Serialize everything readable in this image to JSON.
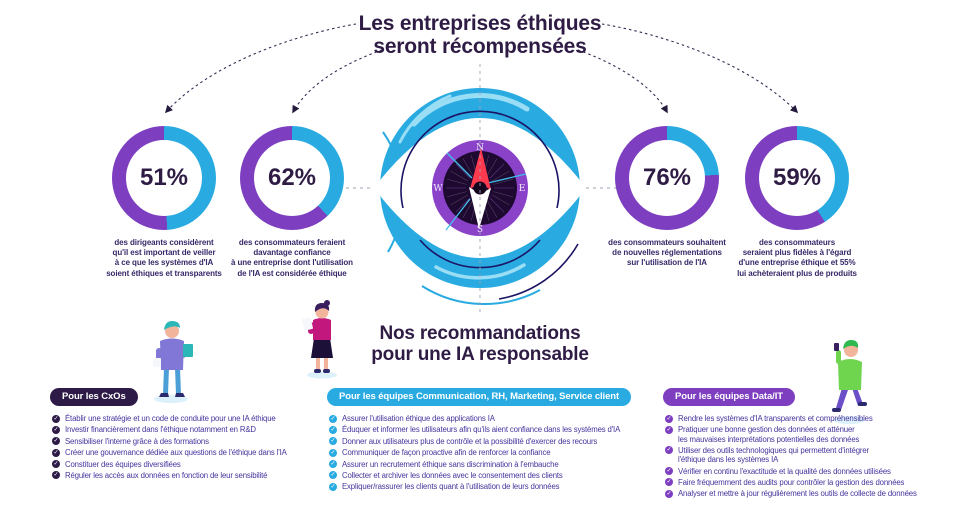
{
  "header": {
    "title_line1": "Les entreprises éthiques",
    "title_line2": "seront récompensées"
  },
  "chart_data": [
    {
      "type": "pie",
      "label": "51%",
      "percent": 51,
      "colors": [
        "#7d3fbf",
        "#29abe2"
      ],
      "caption": "des dirigeants considèrent\nqu'il est important de veiller\nà ce que les systèmes d'IA\nsoient éthiques et transparents"
    },
    {
      "type": "pie",
      "label": "62%",
      "percent": 62,
      "colors": [
        "#7d3fbf",
        "#29abe2"
      ],
      "caption": "des consommateurs feraient\ndavantage confiance\nà une entreprise dont l'utilisation\nde l'IA est considérée éthique"
    },
    {
      "type": "pie",
      "label": "76%",
      "percent": 76,
      "colors": [
        "#7d3fbf",
        "#29abe2"
      ],
      "caption": "des consommateurs souhaitent\nde nouvelles réglementations\nsur l'utilisation de l'IA"
    },
    {
      "type": "pie",
      "label": "59%",
      "percent": 59,
      "colors": [
        "#7d3fbf",
        "#29abe2"
      ],
      "caption": "des consommateurs\nseraient plus fidèles à l'égard\nd'une entreprise éthique et 55%\nlui achèteraient plus de produits"
    }
  ],
  "compass": {
    "north": "N",
    "east": "E",
    "south": "S",
    "west": "W"
  },
  "recommendations": {
    "title_line1": "Nos recommandations",
    "title_line2": "pour une IA responsable",
    "columns": [
      {
        "label": "Pour les CxOs",
        "items": [
          "Établir une stratégie et un code de conduite pour une IA éthique",
          "Investir financièrement dans l'éthique notamment en R&D",
          "Sensibiliser l'interne grâce à des formations",
          "Créer une gouvernance dédiée aux questions de l'éthique dans l'IA",
          "Constituer des équipes diversifiées",
          "Réguler les accès aux données en fonction de leur sensibilité"
        ]
      },
      {
        "label": "Pour les équipes Communication, RH, Marketing, Service client",
        "items": [
          "Assurer l'utilisation éthique des applications IA",
          "Éduquer et informer les utilisateurs afin qu'ils aient confiance dans les systèmes d'IA",
          "Donner aux utilisateurs plus de contrôle et la possibilité d'exercer des recours",
          "Communiquer de façon proactive afin de renforcer la confiance",
          "Assurer un recrutement éthique sans discrimination à l'embauche",
          "Collecter et archiver les données avec le consentement des clients",
          "Expliquer/rassurer les clients quant à l'utilisation de leurs données"
        ]
      },
      {
        "label": "Pour les équipes Data/IT",
        "items": [
          "Rendre les systèmes d'IA transparents et compréhensibles",
          "Pratiquer une bonne gestion des données et atténuer\nles mauvaises interprétations potentielles des données",
          "Utiliser des outils technologiques qui permettent d'intégrer\nl'éthique dans les systèmes IA",
          "Vérifier en continu l'exactitude et la qualité des données utilisées",
          "Faire fréquemment des audits pour contrôler la gestion des données",
          "Analyser et mettre à jour régulièrement les outils de collecte de données"
        ]
      }
    ]
  },
  "colors": {
    "cyan": "#29abe2",
    "purple": "#7d3fbf",
    "dark_purple": "#2e1a47",
    "navy": "#1b1464",
    "light_cyan": "#9adef5",
    "text_indigo": "#46349c",
    "red_needle": "#ff3a4e",
    "magenta": "#c2187e",
    "green": "#6fd44e"
  }
}
